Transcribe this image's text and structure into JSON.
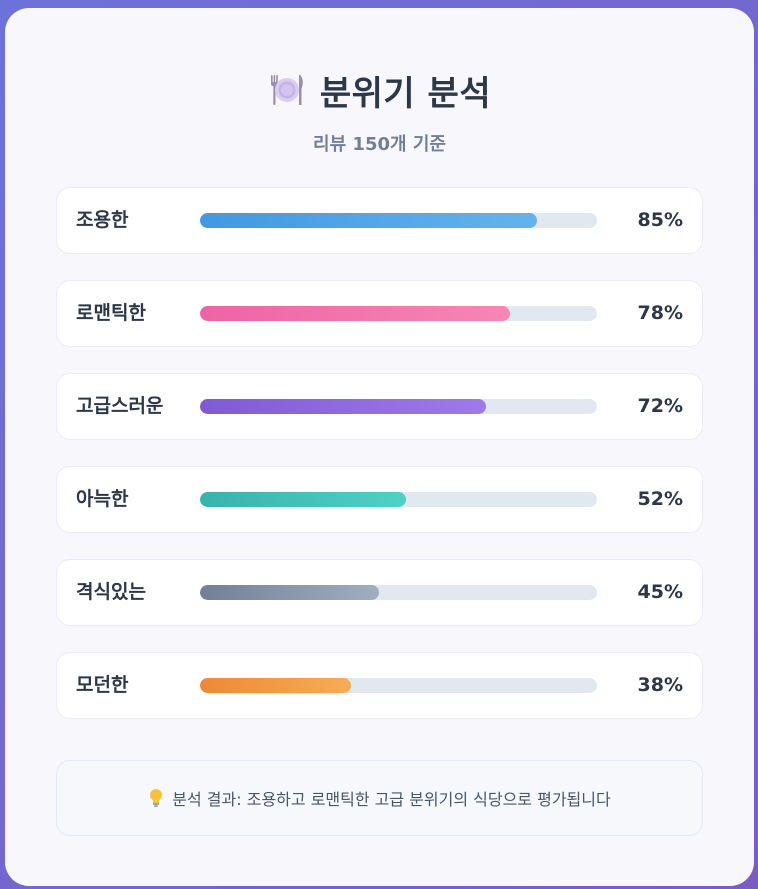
{
  "header": {
    "title": "분위기 분석",
    "subtitle": "리뷰 150개 기준",
    "icon": "plate-fork-knife-icon"
  },
  "chart_data": {
    "type": "bar",
    "orientation": "horizontal",
    "categories": [
      "조용한",
      "로맨틱한",
      "고급스러운",
      "아늑한",
      "격식있는",
      "모던한"
    ],
    "values": [
      85,
      78,
      72,
      52,
      45,
      38
    ],
    "value_labels": [
      "85%",
      "78%",
      "72%",
      "52%",
      "45%",
      "38%"
    ],
    "xlim": [
      0,
      100
    ],
    "colors": [
      [
        "#4299e1",
        "#63b3ed"
      ],
      [
        "#ed64a6",
        "#f687b3"
      ],
      [
        "#805ad5",
        "#9f7aea"
      ],
      [
        "#38b2ac",
        "#4fd1c5"
      ],
      [
        "#718096",
        "#a0aec0"
      ],
      [
        "#ed8936",
        "#f6ad55"
      ]
    ],
    "track_color": "#e2e8f0"
  },
  "summary": {
    "icon": "lightbulb-icon",
    "text": "분석 결과: 조용하고 로맨틱한 고급 분위기의 식당으로 평가됩니다"
  }
}
